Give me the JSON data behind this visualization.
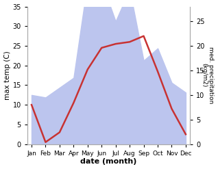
{
  "months": [
    "Jan",
    "Feb",
    "Mar",
    "Apr",
    "May",
    "Jun",
    "Jul",
    "Aug",
    "Sep",
    "Oct",
    "Nov",
    "Dec"
  ],
  "month_positions": [
    1,
    2,
    3,
    4,
    5,
    6,
    7,
    8,
    9,
    10,
    11,
    12
  ],
  "temperature": [
    10.0,
    0.5,
    3.0,
    10.5,
    19.0,
    24.5,
    25.5,
    26.0,
    27.5,
    18.5,
    9.0,
    2.5
  ],
  "precipitation": [
    10.0,
    9.5,
    11.5,
    13.5,
    33.0,
    33.0,
    25.0,
    31.5,
    17.0,
    19.5,
    12.5,
    10.5
  ],
  "temp_color": "#c83232",
  "precip_fill_color": "#bcc5ee",
  "temp_ylim": [
    0,
    35
  ],
  "precip_ylim": [
    0,
    28
  ],
  "temp_yticks": [
    0,
    5,
    10,
    15,
    20,
    25,
    30,
    35
  ],
  "precip_yticks": [
    0,
    5,
    10,
    15,
    20,
    25
  ],
  "xlabel": "date (month)",
  "ylabel_left": "max temp (C)",
  "ylabel_right": "med. precipitation\n(kg/m2)",
  "background_color": "#ffffff"
}
